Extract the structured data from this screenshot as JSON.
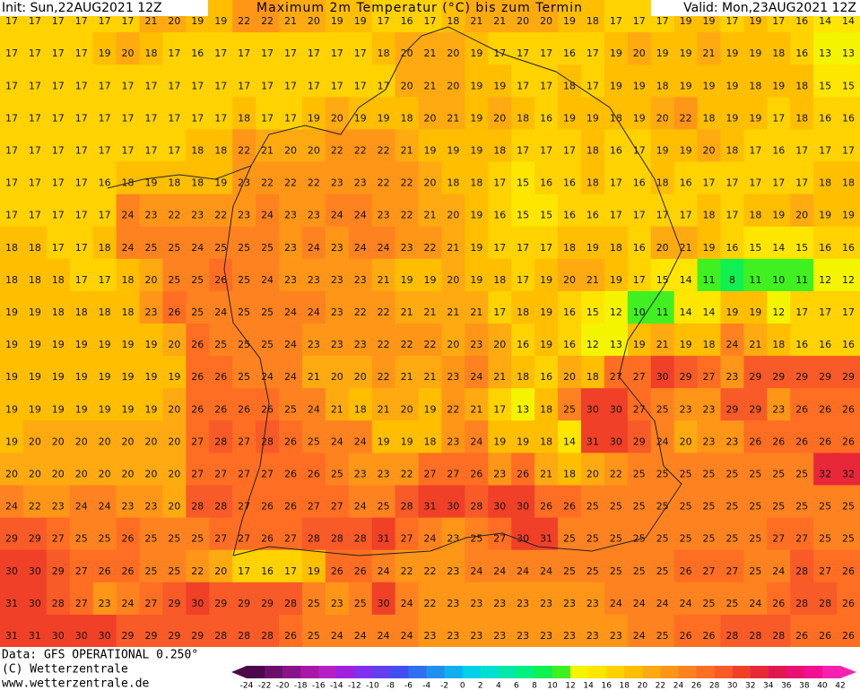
{
  "header": {
    "init": "Init: Sun,22AUG2021 12Z",
    "title": "Maximum 2m Temperatur (°C) bis zum Termin",
    "valid": "Valid: Mon,23AUG2021 12Z"
  },
  "field": {
    "rows": [
      [
        17,
        17,
        17,
        17,
        17,
        17,
        21,
        20,
        19,
        19,
        22,
        22,
        21,
        20,
        19,
        19,
        17,
        16,
        17,
        18,
        21,
        21,
        20,
        20,
        19,
        18,
        17,
        17,
        17,
        19,
        19,
        17,
        19,
        17,
        16,
        14,
        14
      ],
      [
        17,
        17,
        17,
        17,
        19,
        20,
        18,
        17,
        16,
        17,
        17,
        17,
        17,
        17,
        17,
        17,
        18,
        20,
        21,
        20,
        19,
        17,
        17,
        17,
        16,
        17,
        19,
        20,
        19,
        19,
        21,
        19,
        19,
        18,
        16,
        13,
        13
      ],
      [
        17,
        17,
        17,
        17,
        17,
        17,
        17,
        17,
        17,
        17,
        17,
        17,
        17,
        17,
        17,
        17,
        17,
        20,
        21,
        20,
        19,
        19,
        17,
        17,
        18,
        17,
        19,
        19,
        18,
        19,
        19,
        19,
        18,
        19,
        18,
        15,
        15
      ],
      [
        17,
        17,
        17,
        17,
        17,
        17,
        17,
        17,
        17,
        17,
        18,
        17,
        17,
        19,
        20,
        19,
        19,
        18,
        20,
        21,
        19,
        20,
        18,
        16,
        19,
        19,
        18,
        19,
        20,
        22,
        18,
        19,
        19,
        17,
        18,
        16,
        16
      ],
      [
        17,
        17,
        17,
        17,
        17,
        17,
        17,
        17,
        18,
        18,
        22,
        21,
        20,
        20,
        22,
        22,
        22,
        21,
        19,
        19,
        19,
        18,
        17,
        17,
        17,
        18,
        16,
        17,
        19,
        19,
        20,
        18,
        17,
        16,
        17,
        17,
        17
      ],
      [
        17,
        17,
        17,
        17,
        16,
        18,
        19,
        18,
        18,
        19,
        23,
        22,
        22,
        22,
        23,
        23,
        22,
        22,
        20,
        18,
        18,
        17,
        15,
        16,
        16,
        18,
        17,
        16,
        18,
        16,
        17,
        17,
        17,
        17,
        17,
        18,
        18
      ],
      [
        17,
        17,
        17,
        17,
        17,
        24,
        23,
        22,
        23,
        22,
        23,
        24,
        23,
        23,
        24,
        24,
        23,
        22,
        21,
        20,
        19,
        16,
        15,
        15,
        16,
        16,
        17,
        17,
        17,
        17,
        18,
        17,
        18,
        19,
        20,
        19,
        19
      ],
      [
        18,
        18,
        17,
        17,
        18,
        24,
        25,
        25,
        24,
        25,
        25,
        25,
        23,
        24,
        23,
        24,
        24,
        23,
        22,
        21,
        19,
        17,
        17,
        17,
        18,
        19,
        18,
        16,
        20,
        21,
        19,
        16,
        15,
        14,
        15,
        16,
        16
      ],
      [
        18,
        18,
        18,
        17,
        17,
        18,
        20,
        25,
        25,
        26,
        25,
        24,
        23,
        23,
        23,
        23,
        21,
        19,
        19,
        20,
        19,
        18,
        17,
        19,
        20,
        21,
        19,
        17,
        15,
        14,
        11,
        8,
        11,
        10,
        11,
        12,
        12
      ],
      [
        19,
        19,
        18,
        18,
        18,
        18,
        23,
        26,
        25,
        24,
        25,
        25,
        24,
        24,
        23,
        22,
        22,
        21,
        21,
        21,
        21,
        17,
        18,
        19,
        16,
        15,
        12,
        10,
        11,
        14,
        14,
        19,
        19,
        12,
        17,
        17,
        17
      ],
      [
        19,
        19,
        19,
        19,
        19,
        19,
        19,
        20,
        26,
        25,
        25,
        25,
        24,
        23,
        23,
        23,
        22,
        22,
        22,
        20,
        23,
        20,
        16,
        19,
        16,
        12,
        13,
        19,
        21,
        19,
        18,
        24,
        21,
        18,
        16,
        16,
        16
      ],
      [
        19,
        19,
        19,
        19,
        19,
        19,
        19,
        19,
        26,
        26,
        25,
        24,
        24,
        21,
        20,
        20,
        22,
        21,
        21,
        23,
        24,
        21,
        18,
        16,
        20,
        18,
        27,
        27,
        30,
        29,
        27,
        23,
        29,
        29,
        29,
        29,
        29
      ],
      [
        19,
        19,
        19,
        19,
        19,
        19,
        19,
        20,
        26,
        26,
        26,
        26,
        25,
        24,
        21,
        18,
        21,
        20,
        19,
        22,
        21,
        17,
        13,
        18,
        25,
        30,
        30,
        27,
        25,
        23,
        23,
        29,
        29,
        23,
        26,
        26,
        26
      ],
      [
        19,
        20,
        20,
        20,
        20,
        20,
        20,
        20,
        27,
        28,
        27,
        28,
        26,
        25,
        24,
        24,
        19,
        19,
        18,
        23,
        24,
        19,
        19,
        18,
        14,
        31,
        30,
        29,
        24,
        20,
        23,
        23,
        26,
        26,
        26,
        26,
        26
      ],
      [
        20,
        20,
        20,
        20,
        20,
        20,
        20,
        20,
        27,
        27,
        27,
        27,
        26,
        26,
        25,
        23,
        23,
        22,
        27,
        27,
        26,
        23,
        26,
        21,
        18,
        20,
        22,
        25,
        25,
        25,
        25,
        25,
        25,
        25,
        25,
        32,
        32
      ],
      [
        24,
        22,
        23,
        24,
        24,
        23,
        23,
        20,
        28,
        28,
        27,
        26,
        26,
        27,
        27,
        24,
        25,
        28,
        31,
        30,
        28,
        30,
        30,
        26,
        26,
        25,
        25,
        25,
        25,
        25,
        25,
        25,
        25,
        25,
        25,
        25,
        25
      ],
      [
        29,
        29,
        27,
        25,
        25,
        26,
        25,
        25,
        25,
        27,
        27,
        26,
        27,
        28,
        28,
        28,
        31,
        27,
        24,
        23,
        25,
        27,
        30,
        31,
        25,
        25,
        25,
        25,
        25,
        25,
        25,
        25,
        25,
        27,
        27,
        25,
        25
      ],
      [
        30,
        30,
        29,
        27,
        26,
        26,
        25,
        25,
        22,
        20,
        17,
        16,
        17,
        19,
        26,
        26,
        24,
        22,
        22,
        23,
        24,
        24,
        24,
        24,
        25,
        25,
        25,
        25,
        25,
        26,
        27,
        27,
        25,
        24,
        28,
        27,
        26
      ],
      [
        31,
        30,
        28,
        27,
        23,
        24,
        27,
        29,
        30,
        29,
        29,
        29,
        28,
        25,
        23,
        25,
        30,
        24,
        22,
        23,
        23,
        23,
        23,
        23,
        23,
        23,
        24,
        24,
        24,
        24,
        25,
        25,
        24,
        26,
        28,
        28,
        26
      ],
      [
        31,
        31,
        30,
        30,
        30,
        29,
        29,
        29,
        29,
        28,
        28,
        28,
        26,
        25,
        24,
        24,
        24,
        24,
        23,
        23,
        23,
        23,
        23,
        23,
        23,
        23,
        23,
        24,
        25,
        26,
        26,
        28,
        28,
        28,
        26,
        26,
        26
      ]
    ]
  },
  "colorbar": {
    "labels": [
      -24,
      -22,
      -20,
      -18,
      -16,
      -14,
      -12,
      -10,
      -8,
      -6,
      -4,
      -2,
      0,
      2,
      4,
      6,
      8,
      10,
      12,
      14,
      16,
      18,
      20,
      22,
      24,
      26,
      28,
      30,
      32,
      34,
      36,
      38,
      40,
      42
    ],
    "colors": [
      "#4b0a4b",
      "#6b0f6b",
      "#8a148a",
      "#a619a6",
      "#b61fc4",
      "#a020e0",
      "#8030f0",
      "#6040f0",
      "#4050f0",
      "#3070f0",
      "#2090f0",
      "#10b0f0",
      "#00d0e8",
      "#00e0d0",
      "#00e8a8",
      "#00f080",
      "#10f050",
      "#40f020",
      "#f4f400",
      "#ffe600",
      "#ffd200",
      "#ffbe00",
      "#ffaa10",
      "#ff9618",
      "#ff8220",
      "#ff6e22",
      "#f85a28",
      "#f04028",
      "#e82838",
      "#e01850",
      "#e81070",
      "#f01090",
      "#f820b0"
    ]
  },
  "footer": {
    "data": "Data: GFS OPERATIONAL 0.250°",
    "copyright": "(C) Wetterzentrale",
    "url": "www.wetterzentrale.de"
  }
}
